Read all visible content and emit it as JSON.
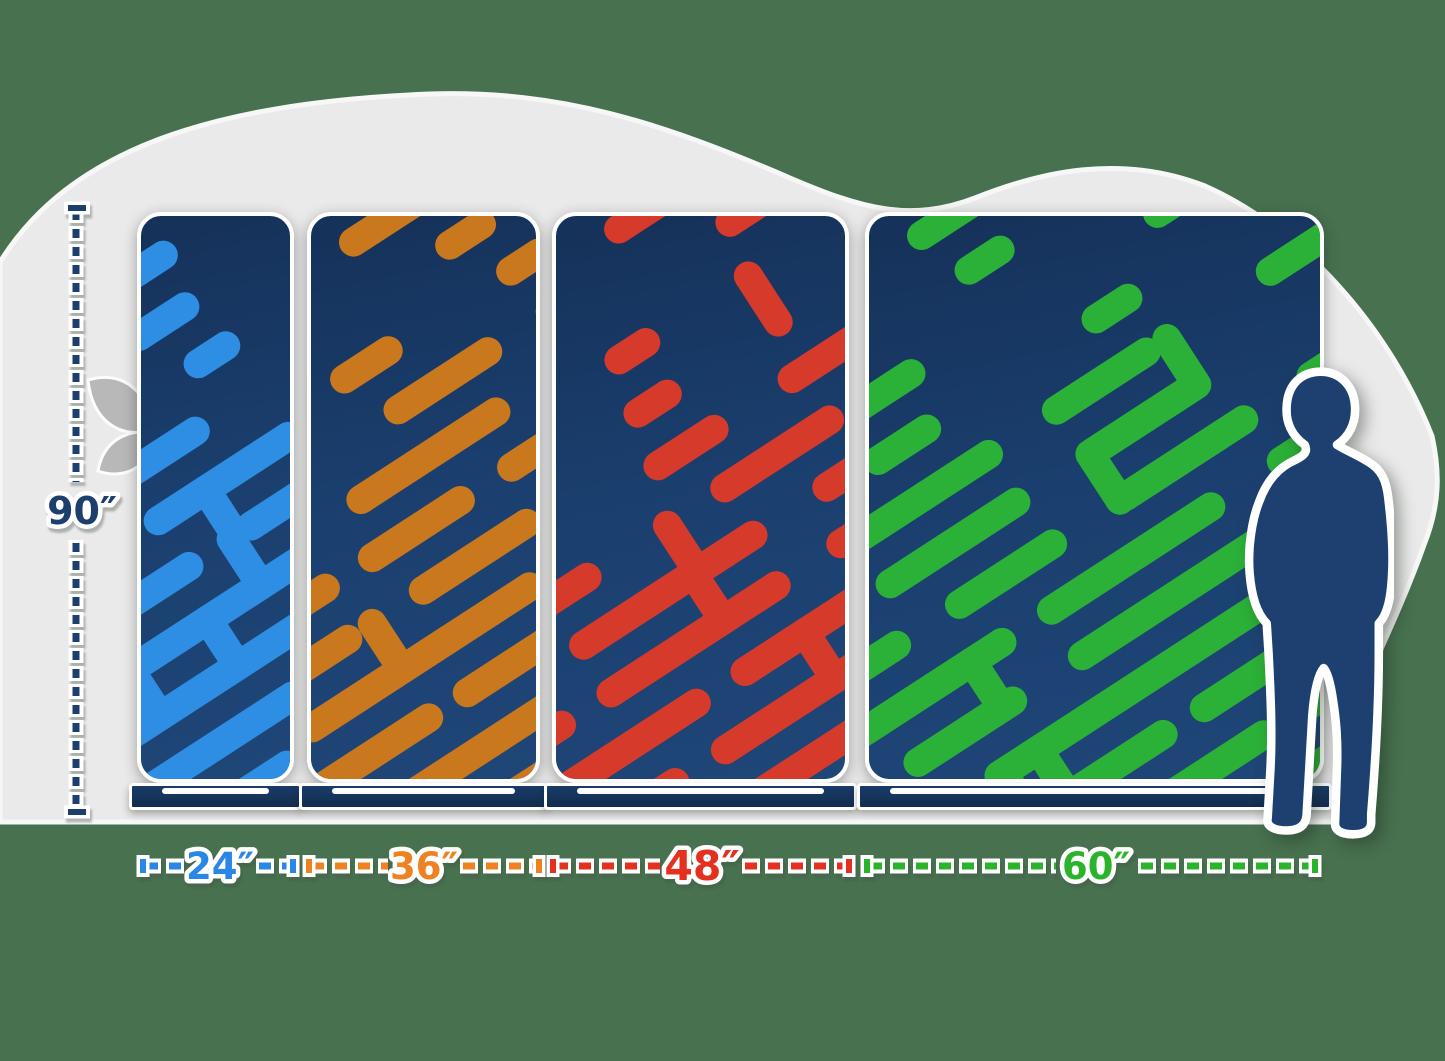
{
  "height_label": "90″",
  "height_line_color": "#1D3F6E",
  "panels": [
    {
      "name": "banner-24",
      "width_label": "24″",
      "accent": "#2D8EE3",
      "label_color": "#2B87E6"
    },
    {
      "name": "banner-36",
      "width_label": "36″",
      "accent": "#C9781D",
      "label_color": "#EE8122"
    },
    {
      "name": "banner-48",
      "width_label": "48″",
      "accent": "#D63A2B",
      "label_color": "#E3301F"
    },
    {
      "name": "banner-60",
      "width_label": "60″",
      "accent": "#2BB138",
      "label_color": "#2BB42B"
    }
  ],
  "colors": {
    "background": "#47714F",
    "panel_navy": "#1B4070",
    "base_navy": "#16365F",
    "blob_gray": "#EAEAEA",
    "leaf_gray": "#B8B8B8",
    "person_navy": "#1D4070",
    "outline_white": "#FFFFFF"
  }
}
